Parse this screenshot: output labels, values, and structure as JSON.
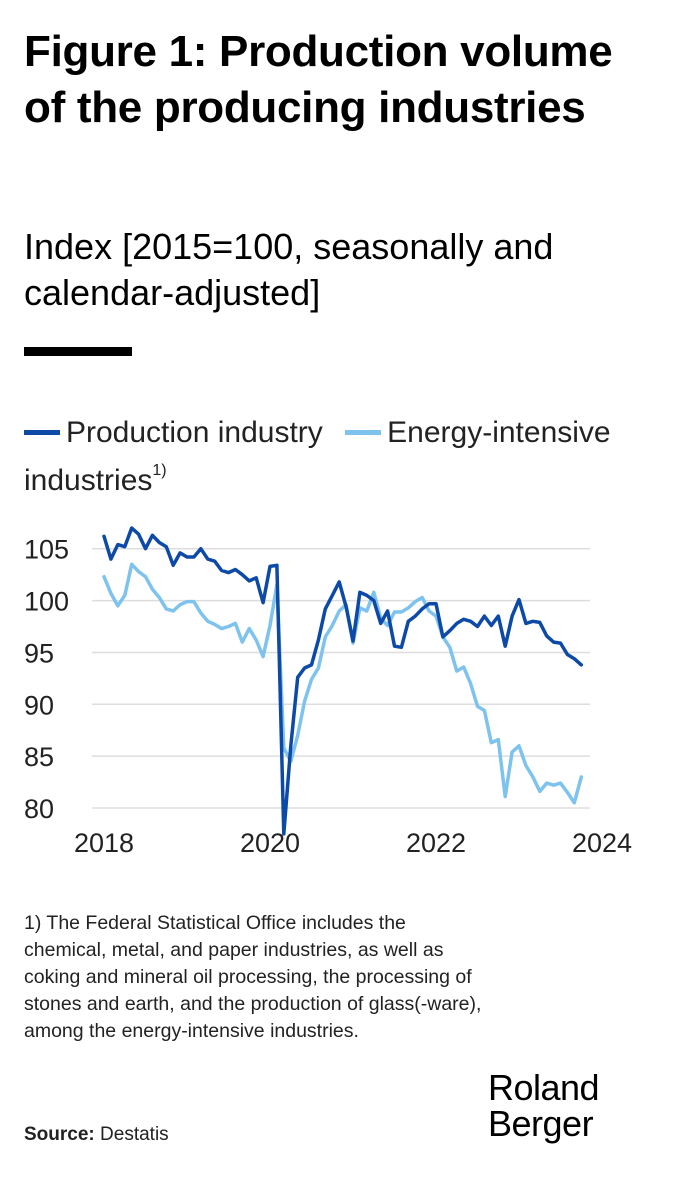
{
  "title": "Figure 1: Production volume of the producing industries",
  "subtitle": "Index [2015=100, seasonally and calendar-adjusted]",
  "footnote": "1) The Federal Statistical Office includes the chemical, metal, and paper industries, as well as coking and mineral oil processing, the processing of stones and earth, and the production of glass(-ware), among the energy-intensive industries.",
  "source": {
    "label": "Source:",
    "value": "Destatis"
  },
  "logo": {
    "line1": "Roland",
    "line2": "Berger"
  },
  "colors": {
    "production": "#0d4aa8",
    "energy": "#7ec3ee",
    "grid": "#dddddd",
    "text": "#222222"
  },
  "chart_data": {
    "type": "line",
    "ylim": [
      80,
      107
    ],
    "xlim": [
      2018,
      2024
    ],
    "yticks": [
      80,
      85,
      90,
      95,
      100,
      105
    ],
    "xticks": [
      "2018",
      "2020",
      "2022",
      "2024"
    ],
    "grid": true,
    "legend_position": "top",
    "series": [
      {
        "name": "Production industry",
        "legend_label": "Production industry",
        "color": "#0d4aa8",
        "x_start": 2018.0,
        "step_months": 1,
        "values": [
          106.2,
          104.0,
          105.4,
          105.2,
          107.0,
          106.4,
          105.0,
          106.3,
          105.6,
          105.2,
          103.4,
          104.6,
          104.2,
          104.2,
          105.0,
          104.0,
          103.8,
          102.9,
          102.7,
          103.0,
          102.5,
          101.9,
          102.2,
          99.8,
          103.3,
          103.4,
          77.5,
          86.0,
          92.6,
          93.5,
          93.8,
          96.2,
          99.2,
          100.5,
          101.8,
          99.4,
          96.1,
          100.8,
          100.5,
          100.0,
          97.8,
          99.0,
          95.6,
          95.5,
          98.0,
          98.5,
          99.2,
          99.7,
          99.7,
          96.5,
          97.1,
          97.8,
          98.2,
          98.0,
          97.5,
          98.5,
          97.6,
          98.5,
          95.6,
          98.5,
          100.1,
          97.8,
          98.0,
          97.9,
          96.6,
          96.0,
          95.9,
          94.8,
          94.4,
          93.8
        ]
      },
      {
        "name": "Energy-intensive industries",
        "legend_label": "Energy-intensive industries",
        "legend_footnote_mark": "1)",
        "color": "#7ec3ee",
        "x_start": 2018.0,
        "step_months": 1,
        "values": [
          102.3,
          100.7,
          99.5,
          100.5,
          103.5,
          102.8,
          102.3,
          101.1,
          100.3,
          99.2,
          99.0,
          99.6,
          99.9,
          99.9,
          98.8,
          98.0,
          97.7,
          97.3,
          97.5,
          97.8,
          96.0,
          97.3,
          96.2,
          94.6,
          97.6,
          101.5,
          85.8,
          84.5,
          87.0,
          90.3,
          92.4,
          93.5,
          96.5,
          97.6,
          99.0,
          99.6,
          95.9,
          99.3,
          99.0,
          100.8,
          98.3,
          97.6,
          98.9,
          98.9,
          99.3,
          99.9,
          100.3,
          99.0,
          98.5,
          96.5,
          95.5,
          93.2,
          93.6,
          92.0,
          89.8,
          89.4,
          86.3,
          86.6,
          81.1,
          85.4,
          86.0,
          84.1,
          83.0,
          81.6,
          82.4,
          82.2,
          82.4,
          81.5,
          80.5,
          83.0
        ]
      }
    ]
  }
}
